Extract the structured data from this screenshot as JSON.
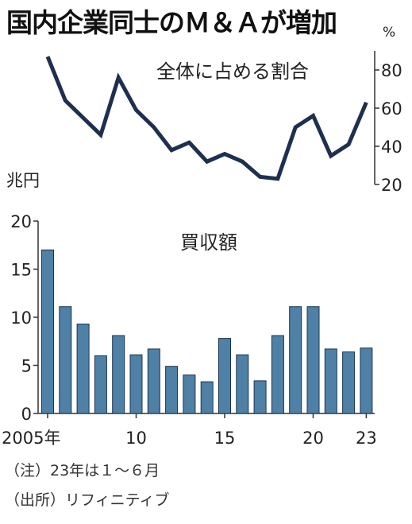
{
  "title": "国内企業同士のＭ＆Ａが増加",
  "note": "（注）23年は１～６月",
  "source": "（出所）リフィニティブ",
  "colors": {
    "line": "#1f2f4f",
    "bar_fill": "#4f80a6",
    "bar_stroke": "#1c3450",
    "axis": "#333333",
    "text": "#222222"
  },
  "chart_data": [
    {
      "type": "line",
      "label": "全体に占める割合",
      "unit": "%",
      "x": [
        2005,
        2006,
        2007,
        2008,
        2009,
        2010,
        2011,
        2012,
        2013,
        2014,
        2015,
        2016,
        2017,
        2018,
        2019,
        2020,
        2021,
        2022,
        2023
      ],
      "values": [
        87,
        64,
        55,
        46,
        76,
        59,
        50,
        38,
        42,
        32,
        36,
        32,
        24,
        23,
        50,
        56,
        35,
        41,
        63
      ],
      "y_ticks": [
        "20",
        "40",
        "60",
        "80"
      ],
      "ylim": [
        20,
        90
      ],
      "axis_side": "right"
    },
    {
      "type": "bar",
      "label": "買収額",
      "unit": "兆円",
      "x": [
        2005,
        2006,
        2007,
        2008,
        2009,
        2010,
        2011,
        2012,
        2013,
        2014,
        2015,
        2016,
        2017,
        2018,
        2019,
        2020,
        2021,
        2022,
        2023
      ],
      "values": [
        17.0,
        11.1,
        9.3,
        6.0,
        8.1,
        6.1,
        6.7,
        4.9,
        4.0,
        3.3,
        7.8,
        6.1,
        3.4,
        8.1,
        11.1,
        11.1,
        6.7,
        6.4,
        6.8
      ],
      "y_ticks": [
        "0",
        "5",
        "10",
        "15",
        "20"
      ],
      "ylim": [
        0,
        20
      ],
      "x_tick_labels": [
        "2005年",
        "10",
        "15",
        "20",
        "23"
      ],
      "x_tick_years": [
        2005,
        2010,
        2015,
        2020,
        2023
      ],
      "axis_side": "left"
    }
  ]
}
